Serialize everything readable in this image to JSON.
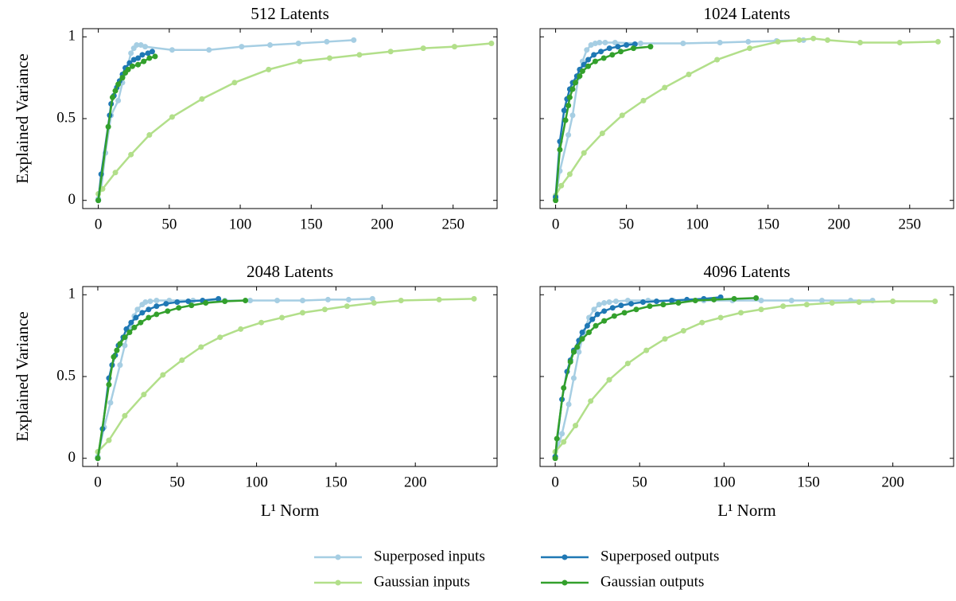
{
  "chart_data": [
    {
      "type": "line",
      "title": "512 Latents",
      "ylabel": "Explained Variance",
      "xlim": [
        -11,
        281
      ],
      "xticks": [
        0,
        50,
        100,
        150,
        200,
        250
      ],
      "ylim": [
        -0.05,
        1.05
      ],
      "yticks": [
        0,
        0.5,
        1
      ],
      "series": [
        {
          "name": "Superposed inputs",
          "color": "#a6cee3",
          "x": [
            0,
            2,
            5,
            9,
            14,
            17,
            20,
            23,
            25,
            27,
            30,
            33,
            52,
            78,
            101,
            121,
            141,
            161,
            180
          ],
          "values": [
            0.01,
            0.07,
            0.29,
            0.52,
            0.61,
            0.72,
            0.8,
            0.9,
            0.93,
            0.95,
            0.95,
            0.94,
            0.92,
            0.92,
            0.94,
            0.95,
            0.96,
            0.97,
            0.98
          ]
        },
        {
          "name": "Gaussian inputs",
          "color": "#b2df8a",
          "x": [
            0,
            3,
            12,
            23,
            36,
            52,
            73,
            96,
            120,
            142,
            163,
            184,
            206,
            229,
            251,
            277
          ],
          "values": [
            0.04,
            0.07,
            0.17,
            0.28,
            0.4,
            0.51,
            0.62,
            0.72,
            0.8,
            0.85,
            0.87,
            0.89,
            0.91,
            0.93,
            0.94,
            0.96
          ]
        },
        {
          "name": "Superposed outputs",
          "color": "#1f78b4",
          "x": [
            0,
            2,
            8,
            9,
            11,
            13,
            15,
            17,
            19,
            22,
            25,
            28,
            31,
            35,
            38
          ],
          "values": [
            0,
            0.16,
            0.52,
            0.59,
            0.64,
            0.69,
            0.73,
            0.77,
            0.81,
            0.84,
            0.86,
            0.87,
            0.89,
            0.9,
            0.91
          ]
        },
        {
          "name": "Gaussian outputs",
          "color": "#33a02c",
          "x": [
            0,
            7,
            10,
            12,
            14,
            17,
            19,
            21,
            24,
            28,
            32,
            36,
            40
          ],
          "values": [
            0,
            0.45,
            0.63,
            0.67,
            0.71,
            0.75,
            0.78,
            0.8,
            0.82,
            0.83,
            0.85,
            0.87,
            0.88
          ]
        }
      ]
    },
    {
      "type": "line",
      "title": "1024 Latents",
      "xlim": [
        -11,
        281
      ],
      "xticks": [
        0,
        50,
        100,
        150,
        200,
        250
      ],
      "ylim": [
        -0.05,
        1.05
      ],
      "yticks": [
        0,
        0.5,
        1
      ],
      "series": [
        {
          "color": "#a6cee3",
          "x": [
            0,
            3,
            9,
            12,
            16,
            19,
            22,
            25,
            28,
            31,
            35,
            42,
            60,
            90,
            116,
            136,
            156,
            175
          ],
          "values": [
            0.01,
            0.18,
            0.4,
            0.52,
            0.75,
            0.85,
            0.92,
            0.95,
            0.96,
            0.965,
            0.965,
            0.965,
            0.96,
            0.96,
            0.965,
            0.97,
            0.975,
            0.98
          ]
        },
        {
          "color": "#b2df8a",
          "x": [
            0,
            4,
            10,
            20,
            33,
            47,
            62,
            77,
            94,
            114,
            137,
            157,
            172,
            182,
            192,
            215,
            243,
            270
          ],
          "values": [
            0.03,
            0.09,
            0.16,
            0.29,
            0.41,
            0.52,
            0.61,
            0.69,
            0.77,
            0.86,
            0.93,
            0.97,
            0.98,
            0.99,
            0.98,
            0.965,
            0.965,
            0.97
          ]
        },
        {
          "color": "#1f78b4",
          "x": [
            0,
            3,
            6,
            8,
            10,
            12,
            15,
            17,
            20,
            23,
            27,
            32,
            38,
            44,
            50,
            56
          ],
          "values": [
            0.02,
            0.36,
            0.55,
            0.62,
            0.68,
            0.72,
            0.76,
            0.8,
            0.83,
            0.86,
            0.89,
            0.91,
            0.93,
            0.94,
            0.95,
            0.955
          ]
        },
        {
          "color": "#33a02c",
          "x": [
            0,
            3,
            7,
            9,
            10,
            12,
            14,
            17,
            19,
            23,
            28,
            34,
            40,
            46,
            55,
            67
          ],
          "values": [
            0,
            0.31,
            0.49,
            0.58,
            0.63,
            0.68,
            0.72,
            0.76,
            0.79,
            0.82,
            0.85,
            0.87,
            0.89,
            0.91,
            0.93,
            0.94
          ]
        }
      ]
    },
    {
      "type": "line",
      "title": "2048 Latents",
      "ylabel": "Explained Variance",
      "xlabel": "L¹ Norm",
      "xlim": [
        -9.5,
        251.5
      ],
      "xticks": [
        0,
        50,
        100,
        150,
        200
      ],
      "ylim": [
        -0.05,
        1.05
      ],
      "yticks": [
        0,
        0.5,
        1
      ],
      "series": [
        {
          "color": "#a6cee3",
          "x": [
            0,
            4,
            8,
            14,
            17,
            20,
            23,
            25,
            28,
            30,
            33,
            37,
            45,
            60,
            80,
            96,
            113,
            129,
            145,
            158,
            173
          ],
          "values": [
            0.01,
            0.19,
            0.34,
            0.57,
            0.69,
            0.8,
            0.87,
            0.91,
            0.94,
            0.955,
            0.96,
            0.965,
            0.965,
            0.965,
            0.965,
            0.965,
            0.965,
            0.965,
            0.97,
            0.97,
            0.975
          ]
        },
        {
          "color": "#b2df8a",
          "x": [
            0,
            7,
            17,
            29,
            41,
            53,
            65,
            77,
            90,
            103,
            116,
            129,
            143,
            157,
            174,
            191,
            215,
            237
          ],
          "values": [
            0.04,
            0.11,
            0.26,
            0.39,
            0.51,
            0.6,
            0.68,
            0.74,
            0.79,
            0.83,
            0.86,
            0.89,
            0.91,
            0.93,
            0.95,
            0.965,
            0.97,
            0.975
          ]
        },
        {
          "color": "#1f78b4",
          "x": [
            0,
            3,
            7,
            9,
            11,
            13,
            16,
            18,
            21,
            24,
            28,
            32,
            37,
            43,
            50,
            57,
            66,
            76
          ],
          "values": [
            0,
            0.18,
            0.49,
            0.57,
            0.63,
            0.69,
            0.74,
            0.79,
            0.83,
            0.86,
            0.89,
            0.91,
            0.93,
            0.945,
            0.955,
            0.96,
            0.965,
            0.975
          ]
        },
        {
          "color": "#33a02c",
          "x": [
            0,
            7,
            10,
            12,
            14,
            17,
            20,
            23,
            27,
            32,
            37,
            44,
            51,
            59,
            68,
            80,
            93
          ],
          "values": [
            0,
            0.45,
            0.62,
            0.66,
            0.7,
            0.74,
            0.77,
            0.8,
            0.83,
            0.86,
            0.88,
            0.9,
            0.92,
            0.935,
            0.95,
            0.96,
            0.965
          ]
        }
      ]
    },
    {
      "type": "line",
      "title": "4096 Latents",
      "xlabel": "L¹ Norm",
      "xlim": [
        -9,
        236
      ],
      "xticks": [
        0,
        50,
        100,
        150,
        200
      ],
      "ylim": [
        -0.05,
        1.05
      ],
      "yticks": [
        0,
        0.5,
        1
      ],
      "series": [
        {
          "color": "#a6cee3",
          "x": [
            0,
            4,
            8,
            11,
            14,
            17,
            20,
            23,
            26,
            29,
            32,
            36,
            43,
            55,
            70,
            88,
            105,
            122,
            140,
            158,
            175,
            188
          ],
          "values": [
            0.01,
            0.15,
            0.33,
            0.49,
            0.65,
            0.77,
            0.86,
            0.91,
            0.94,
            0.95,
            0.955,
            0.96,
            0.965,
            0.965,
            0.965,
            0.965,
            0.965,
            0.965,
            0.965,
            0.965,
            0.965,
            0.965
          ]
        },
        {
          "color": "#b2df8a",
          "x": [
            0,
            5,
            12,
            21,
            32,
            43,
            54,
            65,
            76,
            87,
            98,
            110,
            122,
            135,
            149,
            164,
            180,
            200,
            225
          ],
          "values": [
            0.04,
            0.1,
            0.2,
            0.35,
            0.48,
            0.58,
            0.66,
            0.73,
            0.78,
            0.83,
            0.86,
            0.89,
            0.91,
            0.93,
            0.94,
            0.95,
            0.955,
            0.96,
            0.96
          ]
        },
        {
          "color": "#1f78b4",
          "x": [
            0,
            4,
            7,
            9,
            11,
            14,
            16,
            19,
            22,
            25,
            29,
            34,
            39,
            45,
            52,
            60,
            69,
            78,
            88,
            98
          ],
          "values": [
            0.01,
            0.36,
            0.53,
            0.6,
            0.66,
            0.72,
            0.77,
            0.81,
            0.85,
            0.88,
            0.9,
            0.92,
            0.935,
            0.945,
            0.955,
            0.96,
            0.965,
            0.97,
            0.975,
            0.985
          ]
        },
        {
          "color": "#33a02c",
          "x": [
            0,
            1,
            5,
            9,
            11,
            13,
            16,
            20,
            24,
            29,
            35,
            41,
            48,
            56,
            64,
            73,
            83,
            94,
            106,
            119
          ],
          "values": [
            0,
            0.12,
            0.43,
            0.59,
            0.65,
            0.68,
            0.73,
            0.77,
            0.81,
            0.84,
            0.87,
            0.89,
            0.91,
            0.93,
            0.94,
            0.95,
            0.965,
            0.97,
            0.975,
            0.98
          ]
        }
      ]
    }
  ]
}
